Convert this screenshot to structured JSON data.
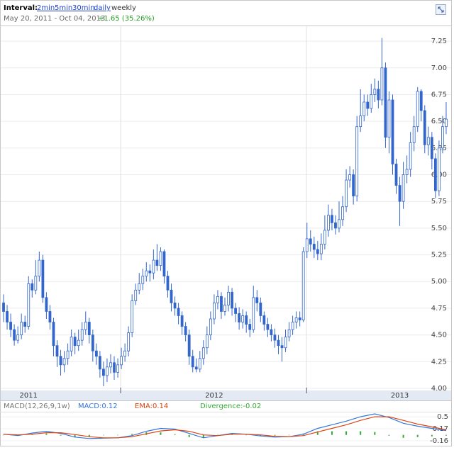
{
  "header": {
    "interval_label": "Interval:",
    "intervals": [
      "2min",
      "5min",
      "30min",
      "daily"
    ],
    "current_interval": "weekly",
    "date_range": "May 20, 2011 - Oct 04, 2013",
    "change": "+1.65 (35.26%)"
  },
  "chart_data": [
    {
      "type": "candlestick",
      "color": "#3366cc",
      "grid": true,
      "xlim": [
        -1,
        125.2
      ],
      "xticks": [
        {
          "value": 7,
          "label": "2011"
        },
        {
          "value": 59,
          "label": "2012"
        },
        {
          "value": 111,
          "label": "2013"
        }
      ],
      "xgrid": [
        32.8,
        84.9
      ],
      "ylim": [
        3.98,
        7.37
      ],
      "yticks": [
        {
          "value": 4,
          "label": "4.00"
        },
        {
          "value": 4.25,
          "label": "4.25"
        },
        {
          "value": 4.5,
          "label": "4.50"
        },
        {
          "value": 4.75,
          "label": "4.75"
        },
        {
          "value": 5,
          "label": "5.00"
        },
        {
          "value": 5.25,
          "label": "5.25"
        },
        {
          "value": 5.5,
          "label": "5.50"
        },
        {
          "value": 5.75,
          "label": "5.75"
        },
        {
          "value": 6,
          "label": "6.00"
        },
        {
          "value": 6.25,
          "label": "6.25"
        },
        {
          "value": 6.5,
          "label": "6.50"
        },
        {
          "value": 6.75,
          "label": "6.75"
        },
        {
          "value": 7,
          "label": "7.00"
        },
        {
          "value": 7.25,
          "label": "7.25"
        }
      ],
      "open": [
        4.8,
        4.72,
        4.62,
        4.55,
        4.45,
        4.5,
        4.62,
        4.58,
        4.98,
        4.92,
        5.05,
        5.2,
        4.85,
        4.72,
        4.62,
        4.4,
        4.3,
        4.22,
        4.28,
        4.35,
        4.48,
        4.4,
        4.45,
        4.55,
        4.62,
        4.5,
        4.35,
        4.3,
        4.18,
        4.12,
        4.2,
        4.24,
        4.15,
        4.22,
        4.3,
        4.35,
        4.52,
        4.82,
        4.92,
        4.98,
        5.05,
        5.1,
        5.08,
        5.2,
        5.15,
        5.28,
        5.05,
        4.92,
        4.8,
        4.75,
        4.68,
        4.58,
        4.5,
        4.3,
        4.2,
        4.18,
        4.28,
        4.38,
        4.5,
        4.65,
        4.8,
        4.86,
        4.72,
        4.78,
        4.9,
        4.75,
        4.7,
        4.62,
        4.68,
        4.6,
        4.55,
        4.85,
        4.8,
        4.68,
        4.6,
        4.55,
        4.5,
        4.45,
        4.4,
        4.38,
        4.48,
        4.55,
        4.62,
        4.66,
        4.64,
        5.28,
        5.4,
        5.35,
        5.3,
        5.26,
        5.35,
        5.48,
        5.62,
        5.55,
        5.5,
        5.58,
        5.7,
        5.95,
        6.0,
        5.8,
        6.45,
        6.55,
        6.68,
        6.62,
        6.75,
        6.8,
        6.7,
        7.0,
        6.35,
        6.7,
        6.1,
        5.9,
        5.75,
        6.0,
        6.05,
        6.3,
        6.45,
        6.78,
        6.6,
        6.28,
        6.35,
        6.15,
        5.85,
        6.25,
        6.45
      ],
      "high": [
        4.88,
        4.78,
        4.7,
        4.6,
        4.58,
        4.7,
        4.68,
        5.05,
        5.02,
        5.2,
        5.28,
        5.25,
        4.9,
        4.78,
        4.66,
        4.45,
        4.36,
        4.35,
        4.42,
        4.55,
        4.52,
        4.55,
        4.62,
        4.72,
        4.66,
        4.55,
        4.42,
        4.35,
        4.25,
        4.28,
        4.32,
        4.3,
        4.28,
        4.38,
        4.42,
        4.58,
        4.88,
        4.98,
        5.08,
        5.12,
        5.18,
        5.16,
        5.3,
        5.35,
        5.32,
        5.3,
        5.1,
        4.98,
        4.86,
        4.8,
        4.72,
        4.62,
        4.55,
        4.36,
        4.28,
        4.35,
        4.45,
        4.58,
        4.72,
        4.88,
        4.92,
        4.9,
        4.85,
        4.96,
        4.94,
        4.8,
        4.76,
        4.74,
        4.72,
        4.65,
        4.96,
        4.92,
        4.85,
        4.72,
        4.66,
        4.6,
        4.56,
        4.5,
        4.48,
        4.55,
        4.62,
        4.68,
        4.72,
        4.72,
        5.32,
        5.55,
        5.48,
        5.42,
        5.38,
        5.45,
        5.62,
        5.72,
        5.68,
        5.62,
        5.75,
        5.8,
        6.05,
        6.08,
        6.05,
        6.55,
        6.8,
        6.75,
        6.75,
        6.85,
        6.9,
        6.88,
        7.28,
        7.05,
        6.78,
        6.75,
        6.15,
        5.98,
        6.12,
        6.18,
        6.4,
        6.55,
        6.82,
        6.8,
        6.65,
        6.45,
        6.4,
        6.2,
        6.32,
        6.55,
        6.68
      ],
      "low": [
        4.62,
        4.55,
        4.48,
        4.4,
        4.42,
        4.46,
        4.52,
        4.55,
        4.85,
        4.88,
        5.0,
        4.8,
        4.65,
        4.55,
        4.3,
        4.2,
        4.12,
        4.15,
        4.22,
        4.3,
        4.32,
        4.35,
        4.4,
        4.5,
        4.42,
        4.25,
        4.22,
        4.1,
        4.02,
        4.06,
        4.14,
        4.08,
        4.1,
        4.18,
        4.25,
        4.3,
        4.48,
        4.78,
        4.88,
        4.92,
        5.0,
        5.0,
        5.02,
        5.1,
        5.1,
        4.98,
        4.85,
        4.72,
        4.68,
        4.6,
        4.5,
        4.44,
        4.22,
        4.15,
        4.15,
        4.15,
        4.22,
        4.32,
        4.45,
        4.6,
        4.74,
        4.65,
        4.68,
        4.72,
        4.68,
        4.62,
        4.55,
        4.56,
        4.52,
        4.48,
        4.52,
        4.72,
        4.62,
        4.54,
        4.48,
        4.44,
        4.38,
        4.32,
        4.25,
        4.34,
        4.44,
        4.5,
        4.56,
        4.58,
        4.62,
        5.22,
        5.28,
        5.22,
        5.2,
        5.2,
        5.3,
        5.42,
        5.48,
        5.44,
        5.46,
        5.52,
        5.65,
        5.88,
        5.72,
        5.75,
        6.4,
        6.5,
        6.55,
        6.58,
        6.68,
        6.62,
        6.65,
        6.25,
        6.2,
        6.0,
        5.82,
        5.52,
        5.68,
        5.92,
        5.98,
        6.22,
        6.4,
        6.5,
        6.2,
        6.18,
        6.05,
        5.78,
        5.8,
        6.2,
        6.38
      ],
      "close": [
        4.72,
        4.62,
        4.55,
        4.45,
        4.5,
        4.62,
        4.58,
        4.98,
        4.92,
        5.05,
        5.2,
        4.85,
        4.72,
        4.62,
        4.4,
        4.3,
        4.22,
        4.28,
        4.35,
        4.48,
        4.4,
        4.45,
        4.55,
        4.62,
        4.5,
        4.35,
        4.3,
        4.18,
        4.12,
        4.2,
        4.24,
        4.15,
        4.22,
        4.3,
        4.35,
        4.52,
        4.82,
        4.92,
        4.98,
        5.05,
        5.1,
        5.08,
        5.2,
        5.15,
        5.28,
        5.05,
        4.92,
        4.8,
        4.75,
        4.68,
        4.58,
        4.5,
        4.3,
        4.2,
        4.18,
        4.28,
        4.38,
        4.5,
        4.65,
        4.8,
        4.86,
        4.72,
        4.78,
        4.9,
        4.75,
        4.7,
        4.62,
        4.68,
        4.6,
        4.55,
        4.85,
        4.8,
        4.68,
        4.6,
        4.55,
        4.5,
        4.45,
        4.4,
        4.38,
        4.48,
        4.55,
        4.62,
        4.66,
        4.64,
        5.28,
        5.4,
        5.35,
        5.3,
        5.26,
        5.35,
        5.48,
        5.62,
        5.55,
        5.5,
        5.58,
        5.7,
        5.95,
        6.0,
        5.8,
        6.45,
        6.55,
        6.68,
        6.62,
        6.75,
        6.8,
        6.7,
        7.0,
        6.35,
        6.7,
        6.1,
        5.9,
        5.75,
        6.0,
        6.05,
        6.3,
        6.45,
        6.78,
        6.6,
        6.28,
        6.35,
        6.15,
        5.85,
        6.25,
        6.45,
        6.52
      ]
    },
    {
      "type": "macd",
      "title": "MACD(12,26,9,1w)",
      "xlim": [
        -1,
        125.2
      ],
      "ylim": [
        -0.28,
        0.62
      ],
      "yticks": [
        0.5,
        0.17,
        -0.16
      ],
      "x": [
        0,
        4,
        8,
        12,
        16,
        20,
        24,
        28,
        32,
        36,
        40,
        44,
        48,
        52,
        56,
        60,
        64,
        68,
        72,
        76,
        80,
        84,
        88,
        92,
        96,
        100,
        104,
        108,
        112,
        116,
        120,
        124
      ],
      "series": [
        {
          "name": "MACD:0.12",
          "color": "#3377dd",
          "kind": "line",
          "values": [
            0.02,
            -0.02,
            0.05,
            0.1,
            0.04,
            -0.06,
            -0.1,
            -0.09,
            -0.08,
            -0.02,
            0.1,
            0.18,
            0.16,
            0.04,
            -0.08,
            -0.02,
            0.04,
            0.02,
            -0.03,
            -0.06,
            -0.05,
            0.02,
            0.18,
            0.28,
            0.38,
            0.5,
            0.58,
            0.48,
            0.32,
            0.24,
            0.18,
            0.12
          ]
        },
        {
          "name": "EMA:0.14",
          "color": "#dd4411",
          "kind": "line",
          "values": [
            0.02,
            0.0,
            0.02,
            0.06,
            0.06,
            0.01,
            -0.05,
            -0.08,
            -0.08,
            -0.05,
            0.03,
            0.11,
            0.14,
            0.1,
            0.0,
            -0.02,
            0.02,
            0.02,
            0.0,
            -0.04,
            -0.05,
            -0.02,
            0.08,
            0.18,
            0.28,
            0.4,
            0.5,
            0.5,
            0.4,
            0.3,
            0.22,
            0.14
          ]
        },
        {
          "name": "Divergence:-0.02",
          "color": "#33aa33",
          "kind": "bar",
          "values": [
            0,
            -0.02,
            0.03,
            0.04,
            -0.02,
            -0.07,
            -0.05,
            -0.01,
            0,
            0.03,
            0.07,
            0.07,
            0.02,
            -0.06,
            -0.08,
            0,
            0.02,
            0,
            -0.03,
            -0.02,
            0,
            0.04,
            0.1,
            0.1,
            0.1,
            0.1,
            0.08,
            -0.02,
            -0.08,
            -0.06,
            -0.04,
            -0.02
          ]
        }
      ]
    }
  ]
}
